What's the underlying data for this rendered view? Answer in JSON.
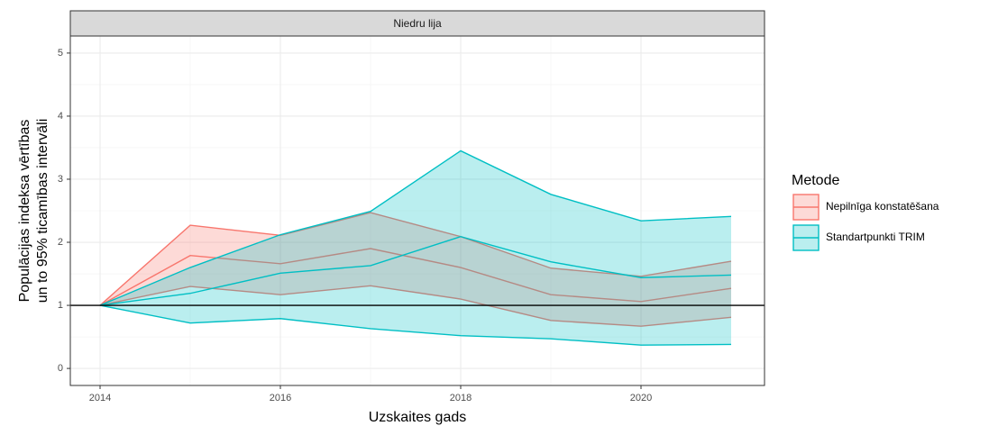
{
  "chart_data": {
    "type": "ribbon",
    "facet": "Niedru lija",
    "x_label": "Uzskaites gads",
    "y_label": [
      "Populācijas indeksa vērtības",
      "un to 95% ticamības intervāli"
    ],
    "legend_title": "Metode",
    "legend": "right",
    "x": [
      2014,
      2015,
      2016,
      2017,
      2018,
      2019,
      2020,
      2021
    ],
    "series": [
      {
        "name": "Nepilnīga konstatēšana",
        "color": "#F8766D",
        "values": [
          1,
          1.79,
          1.66,
          1.9,
          1.6,
          1.17,
          1.06,
          1.27
        ],
        "lower": [
          1,
          1.3,
          1.17,
          1.31,
          1.1,
          0.76,
          0.67,
          0.81
        ],
        "upper": [
          1,
          2.27,
          2.11,
          2.47,
          2.09,
          1.59,
          1.46,
          1.7
        ]
      },
      {
        "name": "Standartpunkti TRIM",
        "color": "#00BFC4",
        "values": [
          1,
          1.19,
          1.51,
          1.63,
          2.09,
          1.69,
          1.44,
          1.48
        ],
        "lower": [
          1,
          0.72,
          0.79,
          0.63,
          0.52,
          0.47,
          0.37,
          0.38
        ],
        "upper": [
          1,
          1.6,
          2.12,
          2.49,
          3.45,
          2.76,
          2.34,
          2.41
        ]
      }
    ],
    "hline": 1,
    "xlim": [
      2013.67,
      2021.37
    ],
    "xticks": [
      2014,
      2016,
      2018,
      2020
    ],
    "ylim": [
      -0.27,
      5.27
    ],
    "yticks": [
      0,
      1,
      2,
      3,
      4,
      5
    ],
    "grid": true
  }
}
